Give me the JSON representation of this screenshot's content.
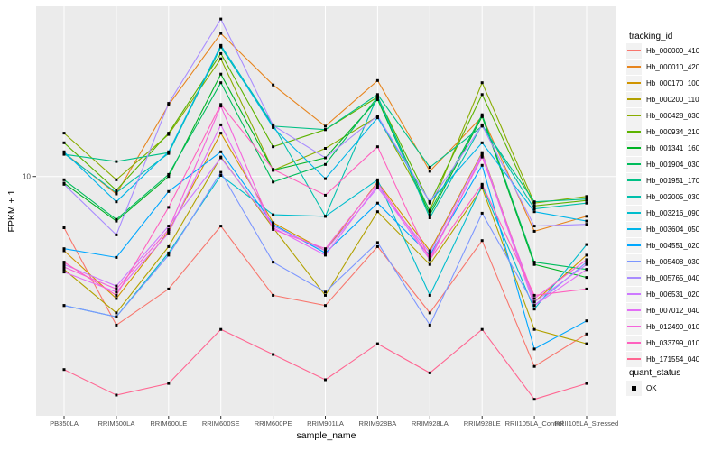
{
  "chart_data": {
    "type": "line",
    "title": "",
    "xlabel": "sample_name",
    "ylabel": "FPKM + 1",
    "y_scale": "log10",
    "ylim_log10": [
      0.03,
      1.69
    ],
    "y_ticks": [
      {
        "value": 10,
        "label": "10"
      }
    ],
    "grid": true,
    "legend_position": "right",
    "panel_bg": "#EBEBEB",
    "grid_color": "#FFFFFF",
    "point_color": "#000000",
    "axis_text_color": "#4D4D4D",
    "categories": [
      "PB350LA",
      "RRIM600LA",
      "RRIM600LE",
      "RRIM600SE",
      "RRIM600PE",
      "RRIM901LA",
      "RRIM928BA",
      "RRIM928LA",
      "RRIM928LE",
      "RRII105LA_Control",
      "RRII105LA_Stressed"
    ],
    "series": [
      {
        "name": "Hb_000009_410",
        "color": "#F8766D",
        "values": [
          6.2,
          2.5,
          3.5,
          6.3,
          3.3,
          3.0,
          5.2,
          2.8,
          5.5,
          1.7,
          2.3
        ]
      },
      {
        "name": "Hb_000010_420",
        "color": "#E7851E",
        "values": [
          12.5,
          8.5,
          19.5,
          38,
          23.5,
          16,
          24.5,
          10.5,
          17.5,
          6.0,
          6.9
        ]
      },
      {
        "name": "Hb_000170_100",
        "color": "#D09400",
        "values": [
          5.0,
          3.2,
          6.0,
          15,
          6.5,
          5.0,
          9.5,
          5.0,
          12.5,
          3.1,
          4.8
        ]
      },
      {
        "name": "Hb_000200_110",
        "color": "#B2A100",
        "values": [
          4.2,
          2.8,
          5.2,
          12,
          6.2,
          3.3,
          7.2,
          4.4,
          9.0,
          2.4,
          2.1
        ]
      },
      {
        "name": "Hb_000428_030",
        "color": "#89AC00",
        "values": [
          15,
          9.7,
          14.8,
          30,
          10.6,
          13,
          17.5,
          7.3,
          24,
          7.8,
          8.3
        ]
      },
      {
        "name": "Hb_000934_210",
        "color": "#5CB300",
        "values": [
          13.7,
          8.8,
          15,
          31.5,
          13.2,
          15.5,
          21,
          7.8,
          21.5,
          7.6,
          8.0
        ]
      },
      {
        "name": "Hb_001341_160",
        "color": "#00B425",
        "values": [
          9.4,
          6.6,
          10,
          26,
          10.6,
          11.9,
          20.5,
          7.0,
          17.5,
          4.4,
          3.9
        ]
      },
      {
        "name": "Hb_001904_030",
        "color": "#00BC5C",
        "values": [
          9.7,
          6.7,
          10.2,
          24,
          9.5,
          11.2,
          21,
          7.2,
          17.8,
          4.5,
          4.2
        ]
      },
      {
        "name": "Hb_001951_170",
        "color": "#00C085",
        "values": [
          12.3,
          11.5,
          12.5,
          33.5,
          16,
          15.5,
          21.5,
          10.9,
          16,
          7.9,
          8.1
        ]
      },
      {
        "name": "Hb_002005_030",
        "color": "#00C0AC",
        "values": [
          12.4,
          8.6,
          12.4,
          34,
          16.2,
          6.9,
          21.2,
          6.8,
          16.2,
          7.4,
          7.8
        ]
      },
      {
        "name": "Hb_003216_090",
        "color": "#00BDCD",
        "values": [
          3.0,
          2.7,
          4.9,
          10.1,
          7.0,
          6.9,
          9.7,
          3.3,
          9.2,
          2.9,
          5.3
        ]
      },
      {
        "name": "Hb_003604_050",
        "color": "#00B5E9",
        "values": [
          12.6,
          7.9,
          12.6,
          34,
          15.8,
          9.8,
          17.3,
          7.9,
          13.7,
          7.2,
          6.6
        ]
      },
      {
        "name": "Hb_004551_020",
        "color": "#00A7FF",
        "values": [
          5.1,
          4.7,
          8.7,
          12.6,
          6.4,
          4.9,
          7.8,
          4.8,
          11.1,
          2.0,
          2.6
        ]
      },
      {
        "name": "Hb_005408_030",
        "color": "#7C96FF",
        "values": [
          3.0,
          2.7,
          4.8,
          10.4,
          4.5,
          3.4,
          5.4,
          2.5,
          7.1,
          3.0,
          4.5
        ]
      },
      {
        "name": "Hb_005765_040",
        "color": "#A98CFF",
        "values": [
          9.3,
          5.8,
          19.8,
          43.5,
          16.1,
          11.9,
          17.6,
          7.9,
          16.1,
          6.3,
          6.4
        ]
      },
      {
        "name": "Hb_006531_020",
        "color": "#CD79FF",
        "values": [
          4.4,
          3.6,
          6.3,
          11.9,
          6.3,
          5.0,
          9.0,
          4.9,
          12.4,
          3.1,
          4.4
        ]
      },
      {
        "name": "Hb_007012_040",
        "color": "#E36EF6",
        "values": [
          4.1,
          3.4,
          5.9,
          16.2,
          6.2,
          4.8,
          9.2,
          4.6,
          12.2,
          3.0,
          4.2
        ]
      },
      {
        "name": "Hb_012490_010",
        "color": "#F564DB",
        "values": [
          4.3,
          3.5,
          6.1,
          19.3,
          6.1,
          5.1,
          9.4,
          4.7,
          12.0,
          3.2,
          4.6
        ]
      },
      {
        "name": "Hb_033799_010",
        "color": "#FF61BF",
        "values": [
          4.5,
          3.3,
          7.5,
          19.6,
          10.7,
          8.4,
          13.2,
          4.6,
          9.3,
          3.3,
          3.5
        ]
      },
      {
        "name": "Hb_171554_040",
        "color": "#FF6692",
        "values": [
          1.65,
          1.3,
          1.45,
          2.4,
          1.9,
          1.5,
          2.1,
          1.6,
          2.4,
          1.25,
          1.45
        ]
      }
    ],
    "legend": {
      "tracking_title": "tracking_id",
      "quant_title": "quant_status",
      "quant_items": [
        {
          "label": "OK",
          "marker": "black-square"
        }
      ]
    }
  }
}
